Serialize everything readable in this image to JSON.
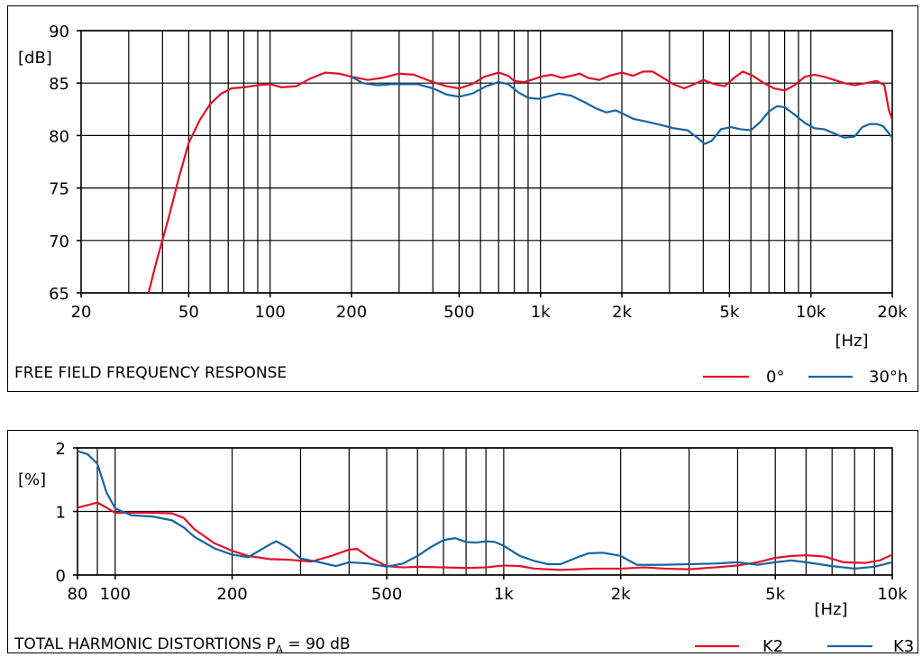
{
  "colors": {
    "red": "#e0102a",
    "blue": "#1565a0"
  },
  "chart_data": [
    {
      "type": "line",
      "caption": "FREE FIELD FREQUENCY RESPONSE",
      "ylabel": "[dB]",
      "xlabel": "[Hz]",
      "x_scale": "log",
      "xlim": [
        20,
        20000
      ],
      "ylim": [
        65,
        90
      ],
      "x_ticks": [
        {
          "v": 20,
          "label": "20"
        },
        {
          "v": 50,
          "label": "50"
        },
        {
          "v": 100,
          "label": "100"
        },
        {
          "v": 200,
          "label": "200"
        },
        {
          "v": 500,
          "label": "500"
        },
        {
          "v": 1000,
          "label": "1k"
        },
        {
          "v": 2000,
          "label": "2k"
        },
        {
          "v": 5000,
          "label": "5k"
        },
        {
          "v": 10000,
          "label": "10k"
        },
        {
          "v": 20000,
          "label": "20k"
        }
      ],
      "y_ticks": [
        {
          "v": 65,
          "label": "65"
        },
        {
          "v": 70,
          "label": "70"
        },
        {
          "v": 75,
          "label": "75"
        },
        {
          "v": 80,
          "label": "80"
        },
        {
          "v": 85,
          "label": "85"
        },
        {
          "v": 90,
          "label": "90"
        }
      ],
      "series": [
        {
          "name": "0°",
          "color": "#e0102a",
          "points": [
            [
              35.5,
              65
            ],
            [
              38,
              68
            ],
            [
              42,
              72
            ],
            [
              46,
              76
            ],
            [
              50,
              79.3
            ],
            [
              55,
              81.5
            ],
            [
              60,
              83
            ],
            [
              66,
              84
            ],
            [
              72,
              84.5
            ],
            [
              80,
              84.6
            ],
            [
              90,
              84.8
            ],
            [
              100,
              84.9
            ],
            [
              110,
              84.6
            ],
            [
              125,
              84.7
            ],
            [
              140,
              85.4
            ],
            [
              160,
              86
            ],
            [
              180,
              85.9
            ],
            [
              200,
              85.6
            ],
            [
              230,
              85.3
            ],
            [
              260,
              85.5
            ],
            [
              300,
              85.9
            ],
            [
              340,
              85.8
            ],
            [
              400,
              85.1
            ],
            [
              450,
              84.7
            ],
            [
              500,
              84.5
            ],
            [
              560,
              84.9
            ],
            [
              620,
              85.6
            ],
            [
              700,
              86
            ],
            [
              760,
              85.7
            ],
            [
              800,
              85.2
            ],
            [
              870,
              85.1
            ],
            [
              950,
              85.4
            ],
            [
              1000,
              85.6
            ],
            [
              1100,
              85.8
            ],
            [
              1200,
              85.5
            ],
            [
              1300,
              85.7
            ],
            [
              1400,
              85.9
            ],
            [
              1500,
              85.5
            ],
            [
              1650,
              85.3
            ],
            [
              1800,
              85.7
            ],
            [
              2000,
              86
            ],
            [
              2200,
              85.7
            ],
            [
              2400,
              86.1
            ],
            [
              2600,
              86.1
            ],
            [
              2800,
              85.6
            ],
            [
              3100,
              84.9
            ],
            [
              3400,
              84.5
            ],
            [
              3700,
              84.9
            ],
            [
              4000,
              85.3
            ],
            [
              4400,
              84.9
            ],
            [
              4800,
              84.7
            ],
            [
              5200,
              85.5
            ],
            [
              5600,
              86.1
            ],
            [
              6100,
              85.7
            ],
            [
              6700,
              85
            ],
            [
              7300,
              84.5
            ],
            [
              8000,
              84.3
            ],
            [
              8700,
              84.8
            ],
            [
              9500,
              85.6
            ],
            [
              10300,
              85.8
            ],
            [
              11200,
              85.6
            ],
            [
              12200,
              85.3
            ],
            [
              13300,
              85
            ],
            [
              14500,
              84.8
            ],
            [
              16000,
              85
            ],
            [
              17500,
              85.2
            ],
            [
              18700,
              84.8
            ],
            [
              19400,
              82.5
            ],
            [
              20000,
              81.5
            ]
          ]
        },
        {
          "name": "30°h",
          "color": "#1565a0",
          "points": [
            [
              200,
              85.6
            ],
            [
              220,
              85
            ],
            [
              250,
              84.8
            ],
            [
              280,
              84.9
            ],
            [
              310,
              84.9
            ],
            [
              350,
              84.9
            ],
            [
              400,
              84.5
            ],
            [
              450,
              83.9
            ],
            [
              500,
              83.7
            ],
            [
              560,
              84
            ],
            [
              630,
              84.7
            ],
            [
              700,
              85.1
            ],
            [
              760,
              84.9
            ],
            [
              830,
              84.1
            ],
            [
              900,
              83.6
            ],
            [
              980,
              83.5
            ],
            [
              1060,
              83.7
            ],
            [
              1170,
              84
            ],
            [
              1300,
              83.8
            ],
            [
              1450,
              83.2
            ],
            [
              1600,
              82.6
            ],
            [
              1750,
              82.2
            ],
            [
              1900,
              82.4
            ],
            [
              2050,
              82
            ],
            [
              2200,
              81.6
            ],
            [
              2500,
              81.3
            ],
            [
              2800,
              81
            ],
            [
              3100,
              80.7
            ],
            [
              3500,
              80.5
            ],
            [
              3800,
              79.8
            ],
            [
              4050,
              79.2
            ],
            [
              4300,
              79.5
            ],
            [
              4650,
              80.6
            ],
            [
              5050,
              80.8
            ],
            [
              5500,
              80.6
            ],
            [
              6000,
              80.5
            ],
            [
              6500,
              81.3
            ],
            [
              7000,
              82.3
            ],
            [
              7500,
              82.8
            ],
            [
              8000,
              82.7
            ],
            [
              8700,
              82
            ],
            [
              9500,
              81.2
            ],
            [
              10300,
              80.7
            ],
            [
              11200,
              80.6
            ],
            [
              12200,
              80.2
            ],
            [
              13300,
              79.8
            ],
            [
              14500,
              79.9
            ],
            [
              15500,
              80.8
            ],
            [
              16500,
              81.1
            ],
            [
              17500,
              81.1
            ],
            [
              18500,
              80.9
            ],
            [
              19300,
              80.3
            ],
            [
              20000,
              79.8
            ]
          ]
        }
      ]
    },
    {
      "type": "line",
      "caption_main": "TOTAL HARMONIC DISTORTIONS P",
      "caption_sub": "A",
      "caption_tail": " = 90 dB",
      "ylabel": "[%]",
      "xlabel": "[Hz]",
      "x_scale": "log",
      "xlim": [
        80,
        10000
      ],
      "ylim": [
        0,
        2
      ],
      "x_ticks": [
        {
          "v": 80,
          "label": "80"
        },
        {
          "v": 100,
          "label": "100"
        },
        {
          "v": 200,
          "label": "200"
        },
        {
          "v": 500,
          "label": "500"
        },
        {
          "v": 1000,
          "label": "1k"
        },
        {
          "v": 2000,
          "label": "2k"
        },
        {
          "v": 5000,
          "label": "5k"
        },
        {
          "v": 10000,
          "label": "10k"
        }
      ],
      "y_ticks": [
        {
          "v": 0,
          "label": "0"
        },
        {
          "v": 1,
          "label": "1"
        },
        {
          "v": 2,
          "label": "2"
        }
      ],
      "series": [
        {
          "name": "K2",
          "color": "#e0102a",
          "points": [
            [
              80,
              1.06
            ],
            [
              85,
              1.1
            ],
            [
              90,
              1.14
            ],
            [
              95,
              1.06
            ],
            [
              100,
              0.98
            ],
            [
              110,
              0.98
            ],
            [
              125,
              0.98
            ],
            [
              140,
              0.97
            ],
            [
              150,
              0.9
            ],
            [
              160,
              0.72
            ],
            [
              180,
              0.5
            ],
            [
              200,
              0.38
            ],
            [
              220,
              0.3
            ],
            [
              250,
              0.25
            ],
            [
              280,
              0.24
            ],
            [
              320,
              0.21
            ],
            [
              360,
              0.3
            ],
            [
              400,
              0.4
            ],
            [
              420,
              0.41
            ],
            [
              450,
              0.28
            ],
            [
              500,
              0.14
            ],
            [
              550,
              0.12
            ],
            [
              600,
              0.13
            ],
            [
              700,
              0.12
            ],
            [
              800,
              0.11
            ],
            [
              900,
              0.12
            ],
            [
              1000,
              0.15
            ],
            [
              1100,
              0.14
            ],
            [
              1200,
              0.1
            ],
            [
              1400,
              0.08
            ],
            [
              1700,
              0.1
            ],
            [
              2000,
              0.1
            ],
            [
              2300,
              0.12
            ],
            [
              2600,
              0.1
            ],
            [
              3000,
              0.09
            ],
            [
              3500,
              0.12
            ],
            [
              4000,
              0.15
            ],
            [
              4500,
              0.2
            ],
            [
              5000,
              0.27
            ],
            [
              5500,
              0.3
            ],
            [
              6000,
              0.31
            ],
            [
              6700,
              0.29
            ],
            [
              7500,
              0.2
            ],
            [
              8500,
              0.19
            ],
            [
              9300,
              0.23
            ],
            [
              10000,
              0.32
            ]
          ]
        },
        {
          "name": "K3",
          "color": "#1565a0",
          "points": [
            [
              80,
              1.95
            ],
            [
              85,
              1.9
            ],
            [
              90,
              1.75
            ],
            [
              95,
              1.3
            ],
            [
              100,
              1.05
            ],
            [
              110,
              0.94
            ],
            [
              125,
              0.92
            ],
            [
              140,
              0.86
            ],
            [
              150,
              0.75
            ],
            [
              160,
              0.6
            ],
            [
              180,
              0.42
            ],
            [
              200,
              0.32
            ],
            [
              220,
              0.28
            ],
            [
              250,
              0.48
            ],
            [
              260,
              0.53
            ],
            [
              280,
              0.42
            ],
            [
              300,
              0.26
            ],
            [
              330,
              0.21
            ],
            [
              370,
              0.14
            ],
            [
              400,
              0.2
            ],
            [
              450,
              0.18
            ],
            [
              500,
              0.13
            ],
            [
              550,
              0.18
            ],
            [
              600,
              0.3
            ],
            [
              650,
              0.44
            ],
            [
              700,
              0.55
            ],
            [
              750,
              0.58
            ],
            [
              800,
              0.52
            ],
            [
              850,
              0.51
            ],
            [
              900,
              0.53
            ],
            [
              950,
              0.52
            ],
            [
              1000,
              0.46
            ],
            [
              1100,
              0.3
            ],
            [
              1200,
              0.22
            ],
            [
              1300,
              0.17
            ],
            [
              1400,
              0.17
            ],
            [
              1550,
              0.28
            ],
            [
              1650,
              0.34
            ],
            [
              1800,
              0.35
            ],
            [
              2000,
              0.3
            ],
            [
              2200,
              0.16
            ],
            [
              2500,
              0.16
            ],
            [
              3000,
              0.17
            ],
            [
              3500,
              0.18
            ],
            [
              4000,
              0.2
            ],
            [
              4500,
              0.16
            ],
            [
              5000,
              0.2
            ],
            [
              5500,
              0.23
            ],
            [
              6000,
              0.2
            ],
            [
              7000,
              0.14
            ],
            [
              8000,
              0.1
            ],
            [
              9000,
              0.13
            ],
            [
              10000,
              0.2
            ]
          ]
        }
      ]
    }
  ]
}
